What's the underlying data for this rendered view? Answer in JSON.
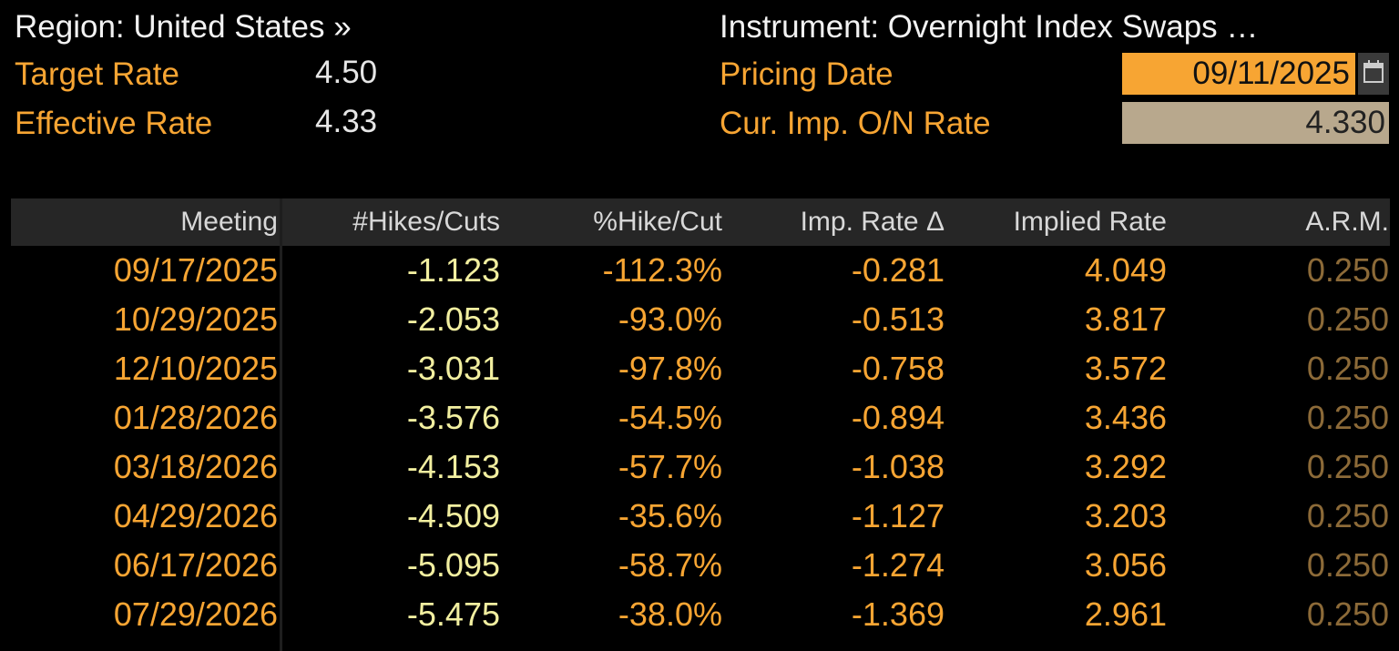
{
  "header": {
    "region": "Region: United States »",
    "target_rate": {
      "label": "Target Rate",
      "value": "4.50"
    },
    "effective_rate": {
      "label": "Effective Rate",
      "value": "4.33"
    },
    "instrument": "Instrument: Overnight Index Swaps …",
    "pricing_date": {
      "label": "Pricing Date",
      "value": "09/11/2025"
    },
    "cur_imp_rate": {
      "label": "Cur. Imp. O/N Rate",
      "value": "4.330"
    }
  },
  "table": {
    "columns": [
      "Meeting",
      "#Hikes/Cuts",
      "%Hike/Cut",
      "Imp. Rate Δ",
      "Implied Rate",
      "A.R.M."
    ],
    "rows": [
      [
        "09/17/2025",
        "-1.123",
        "-112.3%",
        "-0.281",
        "4.049",
        "0.250"
      ],
      [
        "10/29/2025",
        "-2.053",
        "-93.0%",
        "-0.513",
        "3.817",
        "0.250"
      ],
      [
        "12/10/2025",
        "-3.031",
        "-97.8%",
        "-0.758",
        "3.572",
        "0.250"
      ],
      [
        "01/28/2026",
        "-3.576",
        "-54.5%",
        "-0.894",
        "3.436",
        "0.250"
      ],
      [
        "03/18/2026",
        "-4.153",
        "-57.7%",
        "-1.038",
        "3.292",
        "0.250"
      ],
      [
        "04/29/2026",
        "-4.509",
        "-35.6%",
        "-1.127",
        "3.203",
        "0.250"
      ],
      [
        "06/17/2026",
        "-5.095",
        "-58.7%",
        "-1.274",
        "3.056",
        "0.250"
      ],
      [
        "07/29/2026",
        "-5.475",
        "-38.0%",
        "-1.369",
        "2.961",
        "0.250"
      ]
    ]
  }
}
